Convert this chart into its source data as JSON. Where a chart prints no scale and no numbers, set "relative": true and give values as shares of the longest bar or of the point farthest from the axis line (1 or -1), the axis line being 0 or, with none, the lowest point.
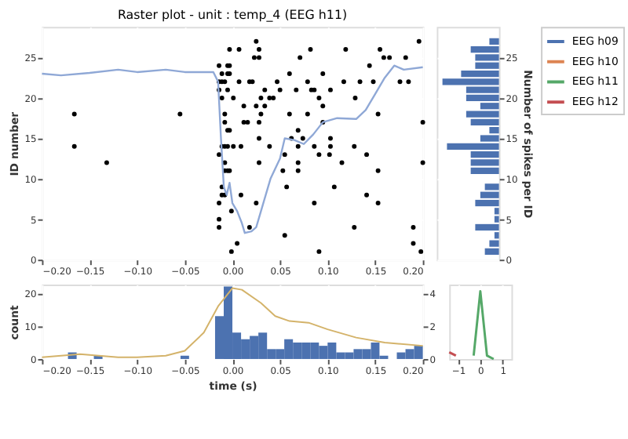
{
  "chart_data": [
    {
      "type": "scatter",
      "title": "Raster plot - unit : temp_4 (EEG h11)",
      "ylabel": "ID number",
      "xlim": [
        -0.2,
        0.2
      ],
      "xticks": [
        {
          "value": -0.2,
          "label": "−0.20"
        },
        {
          "value": -0.15,
          "label": "−0.15"
        },
        {
          "value": -0.1,
          "label": "−0.10"
        },
        {
          "value": -0.05,
          "label": "−0.05"
        },
        {
          "value": 0,
          "label": "0.00"
        },
        {
          "value": 0.05,
          "label": "0.05"
        },
        {
          "value": 0.1,
          "label": "0.10"
        },
        {
          "value": 0.15,
          "label": "0.15"
        },
        {
          "value": 0.2,
          "label": "0.20"
        }
      ],
      "ylim": [
        0,
        28.8
      ],
      "yticks": [
        0,
        5,
        10,
        15,
        20,
        25
      ],
      "grid": true,
      "marker": "circle",
      "series": [
        {
          "type": "scatter",
          "color": "#000000",
          "x": [
            -0.166,
            -0.166,
            -0.132,
            -0.055,
            -0.014,
            -0.014,
            -0.014,
            -0.014,
            -0.014,
            -0.014,
            -0.014,
            -0.011,
            -0.011,
            -0.011,
            -0.011,
            -0.011,
            -0.011,
            -0.008,
            -0.008,
            -0.008,
            -0.008,
            -0.008,
            -0.008,
            -0.008,
            -0.005,
            -0.005,
            -0.005,
            -0.005,
            -0.005,
            -0.005,
            -0.003,
            -0.003,
            -0.003,
            -0.003,
            -0.003,
            -0.001,
            -0.001,
            0.001,
            0.001,
            0.005,
            0.007,
            0.007,
            0.009,
            0.009,
            0.012,
            0.012,
            0.016,
            0.018,
            0.018,
            0.021,
            0.023,
            0.025,
            0.025,
            0.025,
            0.028,
            0.028,
            0.028,
            0.028,
            0.028,
            0.03,
            0.03,
            0.034,
            0.034,
            0.039,
            0.039,
            0.043,
            0.047,
            0.05,
            0.053,
            0.055,
            0.055,
            0.057,
            0.06,
            0.06,
            0.062,
            0.067,
            0.069,
            0.069,
            0.069,
            0.069,
            0.071,
            0.074,
            0.079,
            0.079,
            0.082,
            0.083,
            0.086,
            0.086,
            0.086,
            0.091,
            0.091,
            0.091,
            0.095,
            0.095,
            0.095,
            0.102,
            0.103,
            0.103,
            0.103,
            0.107,
            0.115,
            0.117,
            0.119,
            0.128,
            0.128,
            0.129,
            0.134,
            0.141,
            0.141,
            0.144,
            0.148,
            0.153,
            0.153,
            0.153,
            0.155,
            0.159,
            0.165,
            0.176,
            0.182,
            0.185,
            0.19,
            0.19,
            0.196,
            0.198,
            0.2,
            0.2
          ],
          "values": [
            18,
            14,
            12,
            18,
            24,
            22,
            21,
            13,
            7,
            5,
            4,
            23,
            22,
            20,
            14,
            9,
            8,
            22,
            18,
            17,
            14,
            12,
            11,
            8,
            24,
            23,
            21,
            16,
            14,
            11,
            26,
            24,
            23,
            16,
            11,
            1,
            6,
            20,
            14,
            2,
            26,
            22,
            14,
            8,
            19,
            17,
            17,
            22,
            4,
            22,
            25,
            27,
            19,
            7,
            26,
            25,
            17,
            15,
            12,
            20,
            18,
            21,
            19,
            20,
            14,
            20,
            22,
            21,
            11,
            13,
            3,
            9,
            23,
            18,
            15,
            21,
            16,
            14,
            12,
            11,
            25,
            15,
            22,
            18,
            26,
            21,
            21,
            14,
            7,
            20,
            13,
            1,
            23,
            19,
            17,
            13,
            21,
            15,
            14,
            9,
            12,
            22,
            26,
            14,
            4,
            20,
            22,
            13,
            8,
            24,
            22,
            18,
            11,
            7,
            26,
            25,
            25,
            22,
            25,
            22,
            4,
            2,
            27,
            1,
            17,
            12
          ]
        },
        {
          "type": "line",
          "marker": "none",
          "color": "#8fa8d6",
          "x": [
            -0.2,
            -0.18,
            -0.15,
            -0.12,
            -0.1,
            -0.07,
            -0.05,
            -0.02,
            -0.015,
            -0.012,
            -0.009,
            -0.006,
            -0.003,
            0,
            0.005,
            0.01,
            0.013,
            0.02,
            0.025,
            0.03,
            0.04,
            0.05,
            0.055,
            0.065,
            0.075,
            0.085,
            0.095,
            0.11,
            0.13,
            0.14,
            0.15,
            0.16,
            0.17,
            0.18,
            0.2
          ],
          "values": [
            23,
            22.8,
            23.1,
            23.5,
            23.2,
            23.5,
            23.2,
            23.2,
            22,
            15,
            9,
            8,
            9.5,
            7,
            6,
            4.5,
            3.3,
            3.5,
            4,
            6,
            10,
            12.5,
            15,
            14.8,
            14.3,
            15.5,
            17,
            17.5,
            17.4,
            18.5,
            20.5,
            22.5,
            24,
            23.5,
            23.8
          ]
        }
      ]
    },
    {
      "type": "bar",
      "orientation": "horizontal",
      "relative": true,
      "ylabel": "Number of spikes per ID",
      "ylim": [
        0,
        28.8
      ],
      "yticks": [
        0,
        5,
        10,
        15,
        20,
        25
      ],
      "tick_labels": "y",
      "grid": true,
      "color": "#4c72b0",
      "x": [
        0,
        1,
        2,
        3,
        4,
        5,
        6,
        7,
        8,
        9,
        10,
        11,
        12,
        13,
        14,
        15,
        16,
        17,
        18,
        19,
        20,
        21,
        22,
        23,
        24,
        25,
        26,
        27
      ],
      "values": [
        0,
        0.25,
        0.17,
        0.08,
        0.42,
        0.08,
        0.08,
        0.42,
        0.33,
        0.25,
        0,
        0.5,
        0.5,
        0.5,
        0.92,
        0.33,
        0.17,
        0.5,
        0.58,
        0.33,
        0.58,
        0.58,
        1,
        0.67,
        0.42,
        0.42,
        0.5,
        0.17
      ]
    },
    {
      "type": "histogram",
      "xlabel": "time (s)",
      "ylabel": "count",
      "xlim": [
        -0.2,
        0.2
      ],
      "xticks": [
        {
          "value": -0.2,
          "label": "−0.20"
        },
        {
          "value": -0.15,
          "label": "−0.15"
        },
        {
          "value": -0.1,
          "label": "−0.10"
        },
        {
          "value": -0.05,
          "label": "−0.05"
        },
        {
          "value": 0,
          "label": "0.00"
        },
        {
          "value": 0.05,
          "label": "0.05"
        },
        {
          "value": 0.1,
          "label": "0.10"
        },
        {
          "value": 0.15,
          "label": "0.15"
        },
        {
          "value": 0.2,
          "label": "0.20"
        }
      ],
      "ylim": [
        0,
        22.6
      ],
      "yticks": [
        0,
        10,
        20
      ],
      "y2lim": [
        0,
        4.52
      ],
      "y2ticks": [
        0,
        2,
        4
      ],
      "grid": true,
      "bins": [
        -0.2,
        -0.1909,
        -0.1818,
        -0.1727,
        -0.1636,
        -0.1545,
        -0.1455,
        -0.1364,
        -0.1273,
        -0.1182,
        -0.1091,
        -0.1,
        -0.0909,
        -0.0818,
        -0.0727,
        -0.0636,
        -0.0545,
        -0.0455,
        -0.0364,
        -0.0273,
        -0.0182,
        -0.0091,
        0,
        0.0091,
        0.0182,
        0.0273,
        0.0364,
        0.0455,
        0.0545,
        0.0636,
        0.0727,
        0.0818,
        0.0909,
        0.1,
        0.1091,
        0.1182,
        0.1273,
        0.1364,
        0.1455,
        0.1545,
        0.1636,
        0.1727,
        0.1818,
        0.1909,
        0.2
      ],
      "series": [
        {
          "type": "histogram",
          "color": "#4c72b0",
          "values": [
            0,
            0,
            0,
            2,
            0,
            0,
            1,
            0,
            0,
            0,
            0,
            0,
            0,
            0,
            0,
            0,
            1,
            0,
            0,
            0,
            13,
            22,
            8,
            6,
            7,
            8,
            3,
            3,
            6,
            5,
            5,
            5,
            4,
            5,
            2,
            2,
            3,
            3,
            5,
            1,
            0,
            2,
            3,
            4
          ]
        },
        {
          "type": "line",
          "axis": "y2",
          "color": "#d4b36a",
          "x": [
            -0.2,
            -0.16,
            -0.12,
            -0.1,
            -0.07,
            -0.05,
            -0.03,
            -0.015,
            0,
            0.01,
            0.03,
            0.045,
            0.06,
            0.08,
            0.1,
            0.13,
            0.16,
            0.2
          ],
          "values": [
            0.1,
            0.3,
            0.1,
            0.1,
            0.2,
            0.5,
            1.6,
            3.2,
            4.3,
            4.2,
            3.4,
            2.6,
            2.3,
            2.2,
            1.8,
            1.3,
            1.0,
            0.8
          ]
        }
      ]
    },
    {
      "type": "line",
      "relative": true,
      "xlim": [
        -1.4,
        1.4
      ],
      "xticks": [
        {
          "value": -1,
          "label": "−1"
        },
        0,
        1
      ],
      "tick_labels": "x",
      "grid": true,
      "legend": "right",
      "series": [
        {
          "name": "EEG h09",
          "color": "#4c72b0"
        },
        {
          "name": "EEG h10",
          "color": "#dd8452"
        },
        {
          "name": "EEG h11",
          "color": "#55a868",
          "x": [
            -0.3,
            0,
            0.3,
            0.6
          ],
          "values": [
            0.05,
            1,
            0.05,
            0
          ]
        },
        {
          "name": "EEG h12",
          "color": "#c44e52",
          "x": [
            -1.4,
            -1.1
          ],
          "values": [
            0.1,
            0.05
          ]
        }
      ]
    }
  ]
}
